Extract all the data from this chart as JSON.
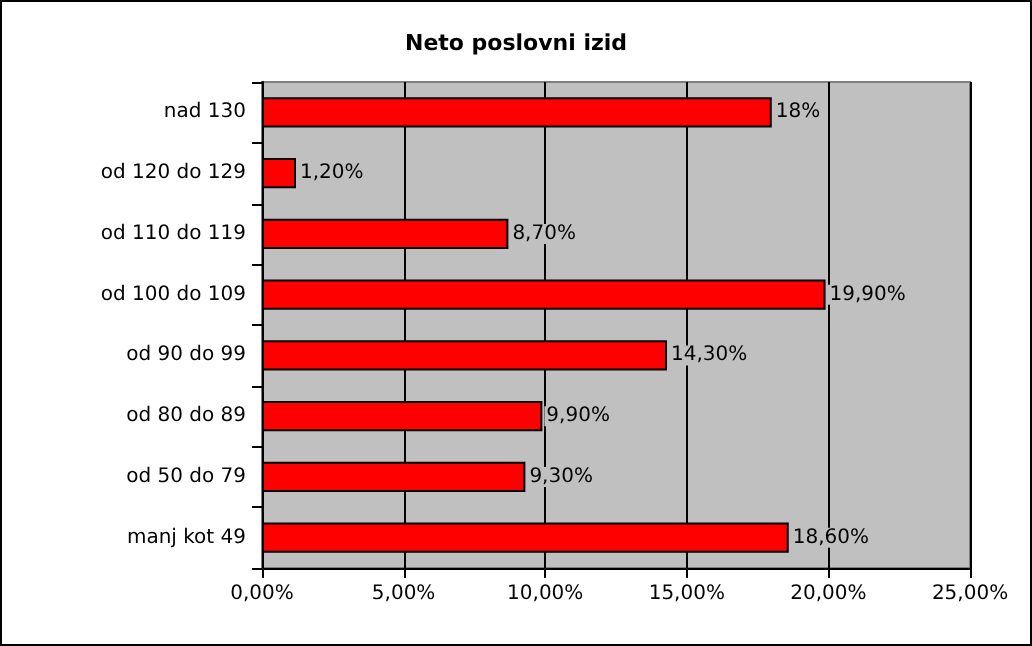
{
  "chart_data": {
    "type": "bar",
    "title": "Neto poslovni izid",
    "orientation": "horizontal",
    "categories": [
      "nad 130",
      "od 120 do 129",
      "od 110 do 119",
      "od 100 do 109",
      "od 90 do 99",
      "od 80 do 89",
      "od 50 do 79",
      "manj kot 49"
    ],
    "values": [
      18,
      1.2,
      8.7,
      19.9,
      14.3,
      9.9,
      9.3,
      18.6
    ],
    "value_labels": [
      "18%",
      "1,20%",
      "8,70%",
      "19,90%",
      "14,30%",
      "9,90%",
      "9,30%",
      "18,60%"
    ],
    "color": "#ff0000",
    "xlim": [
      0,
      25
    ],
    "xticks": [
      {
        "value": 0,
        "label": "0,00%"
      },
      {
        "value": 5,
        "label": "5,00%"
      },
      {
        "value": 10,
        "label": "10,00%"
      },
      {
        "value": 15,
        "label": "15,00%"
      },
      {
        "value": 20,
        "label": "20,00%"
      },
      {
        "value": 25,
        "label": "25,00%"
      }
    ],
    "grid": "x"
  }
}
